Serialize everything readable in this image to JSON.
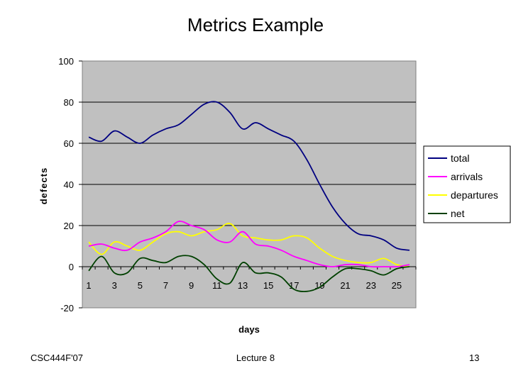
{
  "slide": {
    "title": "Metrics Example",
    "footer_left": "CSC444F'07",
    "footer_center": "Lecture 8",
    "footer_right": "13"
  },
  "colors": {
    "plot_background": "#c0c0c0",
    "gridline": "#000000",
    "total": "#000080",
    "arrivals": "#ff00ff",
    "departures": "#ffff00",
    "net": "#004000"
  },
  "chart_data": {
    "type": "line",
    "title": "",
    "xlabel": "days",
    "ylabel": "defects",
    "xlim": [
      0.5,
      26.5
    ],
    "ylim": [
      -20,
      100
    ],
    "yticks": [
      -20,
      0,
      20,
      40,
      60,
      80,
      100
    ],
    "xticks": [
      1,
      3,
      5,
      7,
      9,
      11,
      13,
      15,
      17,
      19,
      21,
      23,
      25
    ],
    "grid": "horizontal",
    "legend_position": "right",
    "x": [
      1,
      2,
      3,
      4,
      5,
      6,
      7,
      8,
      9,
      10,
      11,
      12,
      13,
      14,
      15,
      16,
      17,
      18,
      19,
      20,
      21,
      22,
      23,
      24,
      25,
      26
    ],
    "series": [
      {
        "name": "total",
        "color": "#000080",
        "values": [
          63,
          61,
          66,
          63,
          60,
          64,
          67,
          69,
          74,
          79,
          80,
          75,
          67,
          70,
          67,
          64,
          61,
          52,
          40,
          29,
          21,
          16,
          15,
          13,
          9,
          8
        ]
      },
      {
        "name": "arrivals",
        "color": "#ff00ff",
        "values": [
          10,
          11,
          9,
          8,
          12,
          14,
          17,
          22,
          20,
          18,
          13,
          12,
          17,
          11,
          10,
          8,
          5,
          3,
          1,
          0,
          1,
          1,
          0,
          0,
          0,
          1
        ]
      },
      {
        "name": "departures",
        "color": "#ffff00",
        "values": [
          12,
          6,
          12,
          10,
          8,
          12,
          16,
          17,
          15,
          17,
          18,
          21,
          15,
          14,
          13,
          13,
          15,
          14,
          9,
          5,
          3,
          2,
          2,
          4,
          1,
          0
        ]
      },
      {
        "name": "net",
        "color": "#004000",
        "values": [
          -2,
          5,
          -3,
          -3,
          4,
          3,
          2,
          5,
          5,
          1,
          -6,
          -8,
          2,
          -3,
          -3,
          -5,
          -11,
          -12,
          -10,
          -5,
          -1,
          -1,
          -2,
          -4,
          -1,
          0
        ]
      }
    ]
  }
}
